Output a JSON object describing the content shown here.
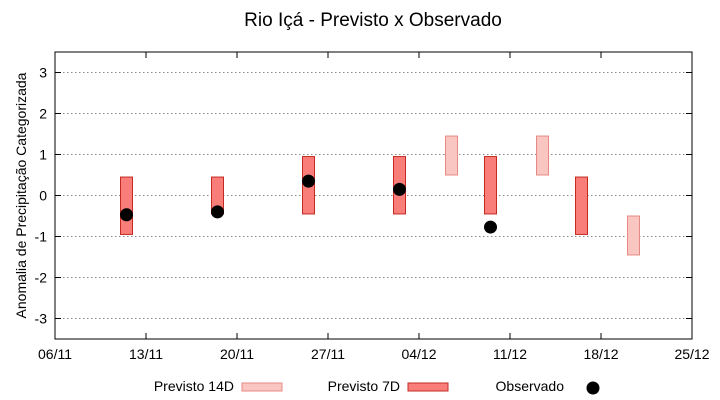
{
  "chart_data": {
    "type": "floating-bar",
    "title": "Rio Içá - Previsto x Observado",
    "xlabel": "",
    "ylabel": "Anomalia de Precipitação Categorizada",
    "ylim": [
      -3.5,
      3.5
    ],
    "yticks": [
      -3,
      -2,
      -1,
      0,
      1,
      2,
      3
    ],
    "xticks": [
      "06/11",
      "13/11",
      "20/11",
      "27/11",
      "04/12",
      "11/12",
      "18/12",
      "25/12"
    ],
    "grid": true,
    "legend_position": "bottom",
    "colors": {
      "p14d_fill": "#f9c6c1",
      "p14d_stroke": "#e88a84",
      "p7d_fill": "#f97e7a",
      "p7d_stroke": "#c42a22",
      "observed": "#000000"
    },
    "series": [
      {
        "name": "Previsto 14D",
        "kind": "range",
        "points": [
          {
            "x_days": 30.5,
            "low": 0.5,
            "high": 1.45
          },
          {
            "x_days": 37.5,
            "low": 0.5,
            "high": 1.45
          },
          {
            "x_days": 44.5,
            "low": -1.45,
            "high": -0.5
          }
        ]
      },
      {
        "name": "Previsto 7D",
        "kind": "range",
        "points": [
          {
            "x_days": 5.5,
            "low": -0.95,
            "high": 0.45
          },
          {
            "x_days": 12.5,
            "low": -0.45,
            "high": 0.45
          },
          {
            "x_days": 19.5,
            "low": -0.45,
            "high": 0.95
          },
          {
            "x_days": 26.5,
            "low": -0.45,
            "high": 0.95
          },
          {
            "x_days": 33.5,
            "low": -0.45,
            "high": 0.95
          },
          {
            "x_days": 40.5,
            "low": -0.95,
            "high": 0.45
          }
        ]
      },
      {
        "name": "Observado",
        "kind": "point",
        "points": [
          {
            "x_days": 5.5,
            "y": -0.47
          },
          {
            "x_days": 12.5,
            "y": -0.4
          },
          {
            "x_days": 19.5,
            "y": 0.35
          },
          {
            "x_days": 26.5,
            "y": 0.15
          },
          {
            "x_days": 33.5,
            "y": -0.77
          }
        ]
      }
    ]
  }
}
